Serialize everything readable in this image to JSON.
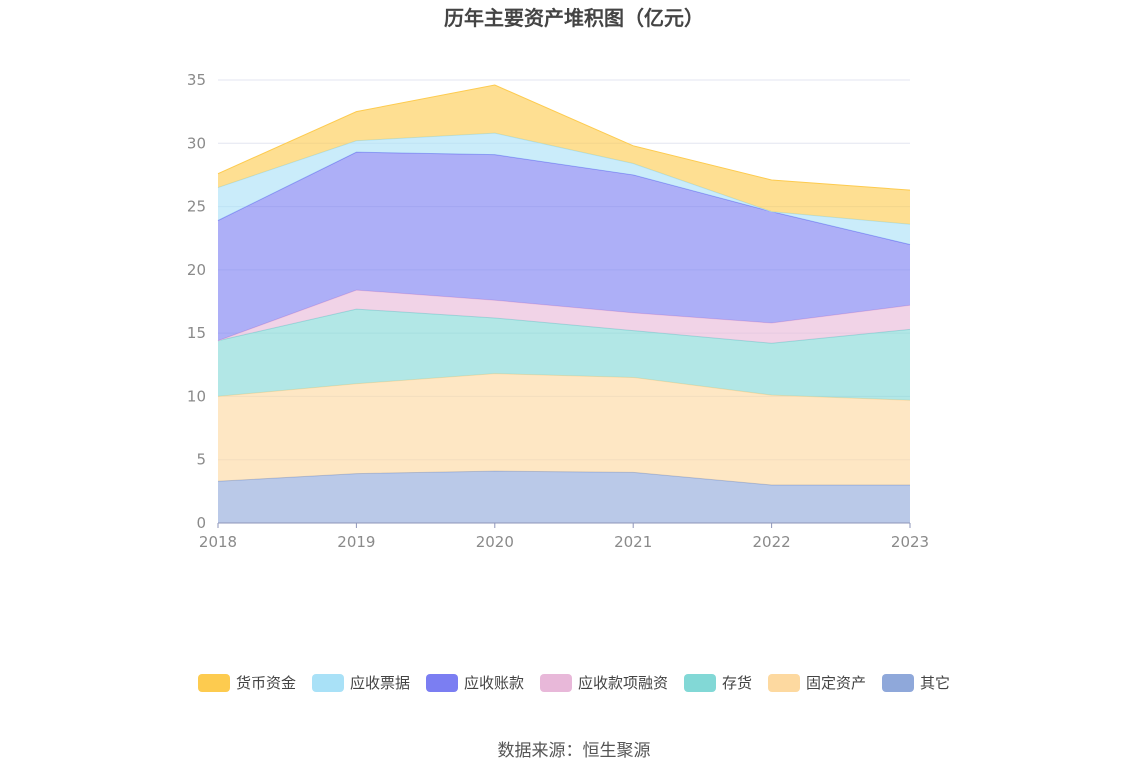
{
  "title": "历年主要资产堆积图（亿元）",
  "source": "数据来源：恒生聚源",
  "chart_data": {
    "type": "area",
    "stacked": true,
    "categories": [
      "2018",
      "2019",
      "2020",
      "2021",
      "2022",
      "2023"
    ],
    "ylim": [
      0,
      35
    ],
    "yticks": [
      0,
      5,
      10,
      15,
      20,
      25,
      30,
      35
    ],
    "grid": true,
    "legend_position": "bottom",
    "series": [
      {
        "name": "其它",
        "color": "#8fa8da",
        "values": [
          3.3,
          3.9,
          4.1,
          4.0,
          3.0,
          3.0
        ]
      },
      {
        "name": "固定资产",
        "color": "#fdd9a0",
        "values": [
          6.7,
          7.1,
          7.7,
          7.5,
          7.1,
          6.7
        ]
      },
      {
        "name": "存货",
        "color": "#82d8d6",
        "values": [
          4.4,
          5.9,
          4.4,
          3.7,
          4.1,
          5.6
        ]
      },
      {
        "name": "应收款项融资",
        "color": "#e8b8d9",
        "values": [
          0.0,
          1.5,
          1.4,
          1.4,
          1.6,
          1.9
        ]
      },
      {
        "name": "应收账款",
        "color": "#7b7ef2",
        "values": [
          9.5,
          10.9,
          11.5,
          10.9,
          8.8,
          4.8
        ]
      },
      {
        "name": "应收票据",
        "color": "#a9e1f7",
        "values": [
          2.6,
          0.9,
          1.7,
          0.9,
          0.0,
          1.6
        ]
      },
      {
        "name": "货币资金",
        "color": "#fdcb4f",
        "values": [
          1.1,
          2.3,
          3.8,
          1.4,
          2.5,
          2.7
        ]
      }
    ]
  }
}
